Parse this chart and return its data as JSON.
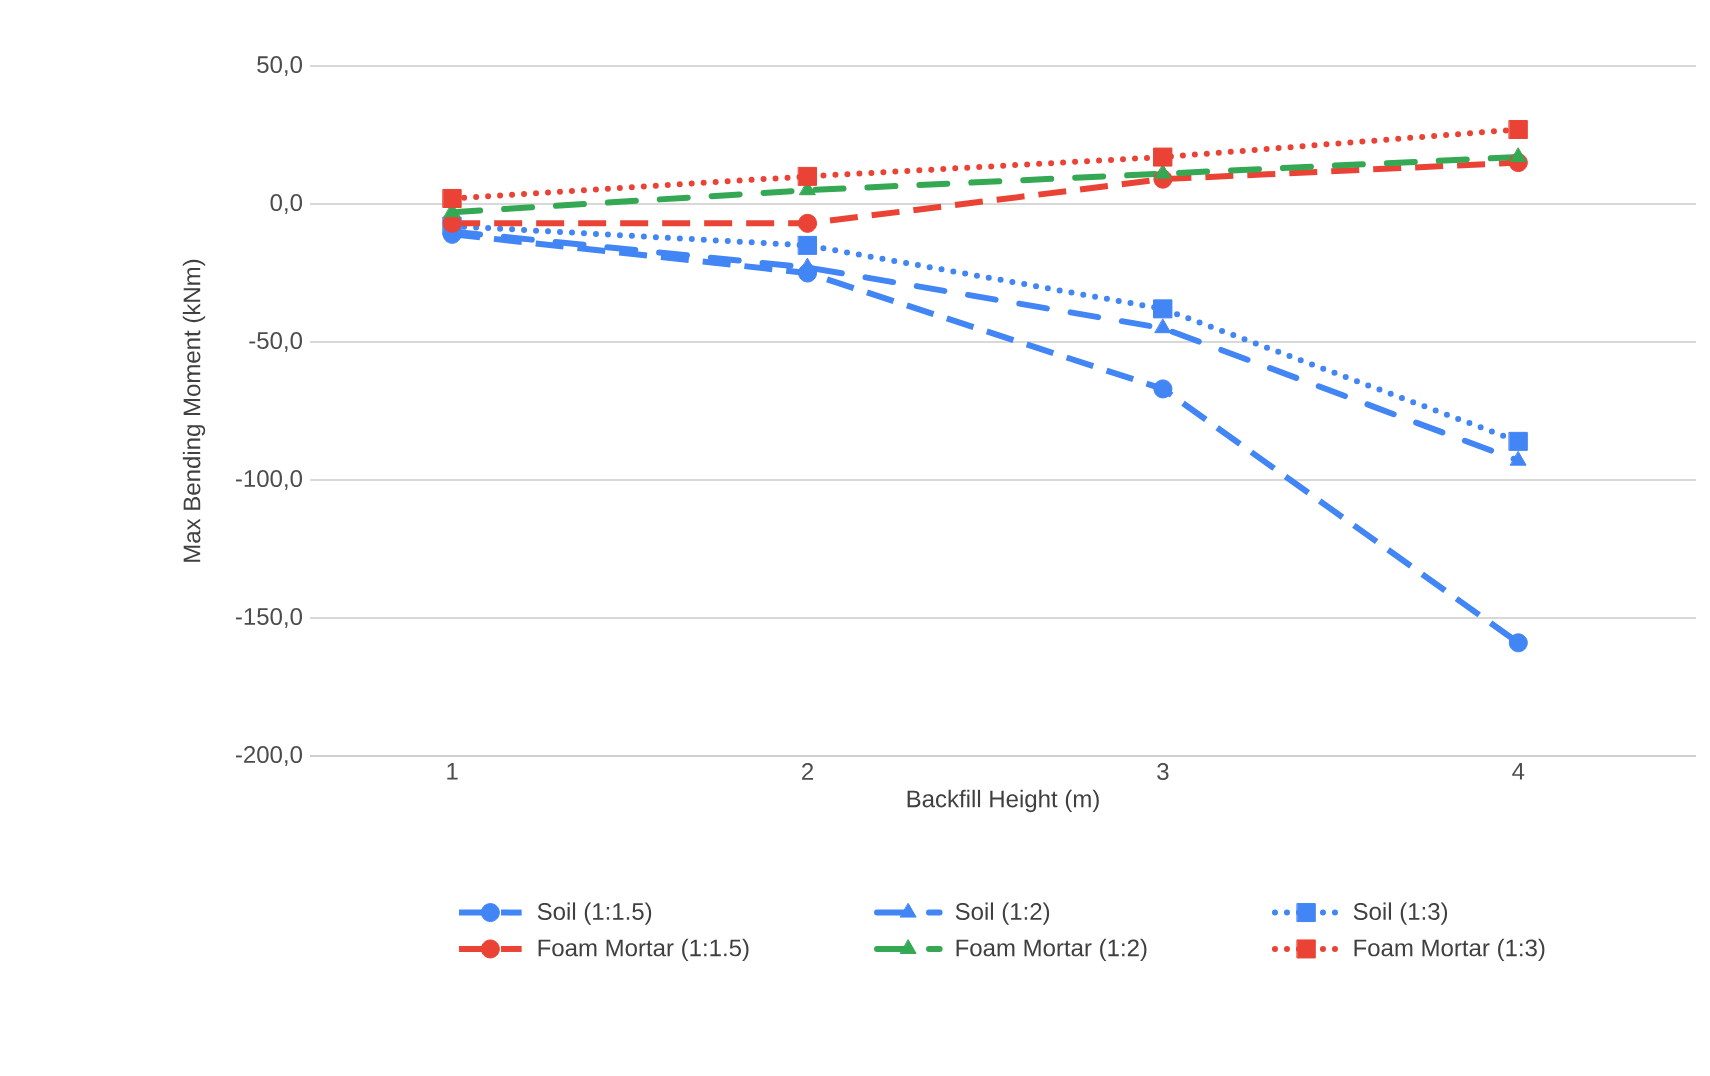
{
  "chart_data": {
    "type": "line",
    "xlabel": "Backfill Height (m)",
    "ylabel": "Max Bending Moment (kNm)",
    "x": [
      1,
      2,
      3,
      4
    ],
    "xlim": [
      0.6,
      4.5
    ],
    "xticks": [
      1,
      2,
      3,
      4
    ],
    "ylim": [
      -200,
      50
    ],
    "yticks": [
      {
        "value": -200,
        "label": "-200,0"
      },
      {
        "value": -150,
        "label": "-150,0"
      },
      {
        "value": -100,
        "label": "-100,0"
      },
      {
        "value": -50,
        "label": "-50,0"
      },
      {
        "value": 0,
        "label": "0,0"
      },
      {
        "value": 50,
        "label": "50,0"
      }
    ],
    "grid": "y",
    "legend": "bottom",
    "series": [
      {
        "name": "Soil (1:1.5)",
        "color": "#4285f4",
        "marker": "circle",
        "line_style": "dashed",
        "values": [
          -11,
          -25,
          -67,
          -159
        ]
      },
      {
        "name": "Soil (1:2)",
        "color": "#4285f4",
        "marker": "triangle",
        "line_style": "dashdot",
        "values": [
          -10,
          -23,
          -45,
          -93
        ]
      },
      {
        "name": "Soil (1:3)",
        "color": "#4285f4",
        "marker": "square",
        "line_style": "dotted",
        "values": [
          -8,
          -15,
          -38,
          -86
        ]
      },
      {
        "name": "Foam Mortar (1:1.5)",
        "color": "#ea4335",
        "marker": "circle",
        "line_style": "dashed",
        "values": [
          -7,
          -7,
          9,
          15
        ]
      },
      {
        "name": "Foam Mortar (1:2)",
        "color": "#34a853",
        "marker": "triangle",
        "line_style": "dashdot",
        "values": [
          -3,
          5,
          11,
          17
        ]
      },
      {
        "name": "Foam Mortar (1:3)",
        "color": "#ea4335",
        "marker": "square",
        "line_style": "dotted",
        "values": [
          2,
          10,
          17,
          27
        ]
      }
    ]
  }
}
